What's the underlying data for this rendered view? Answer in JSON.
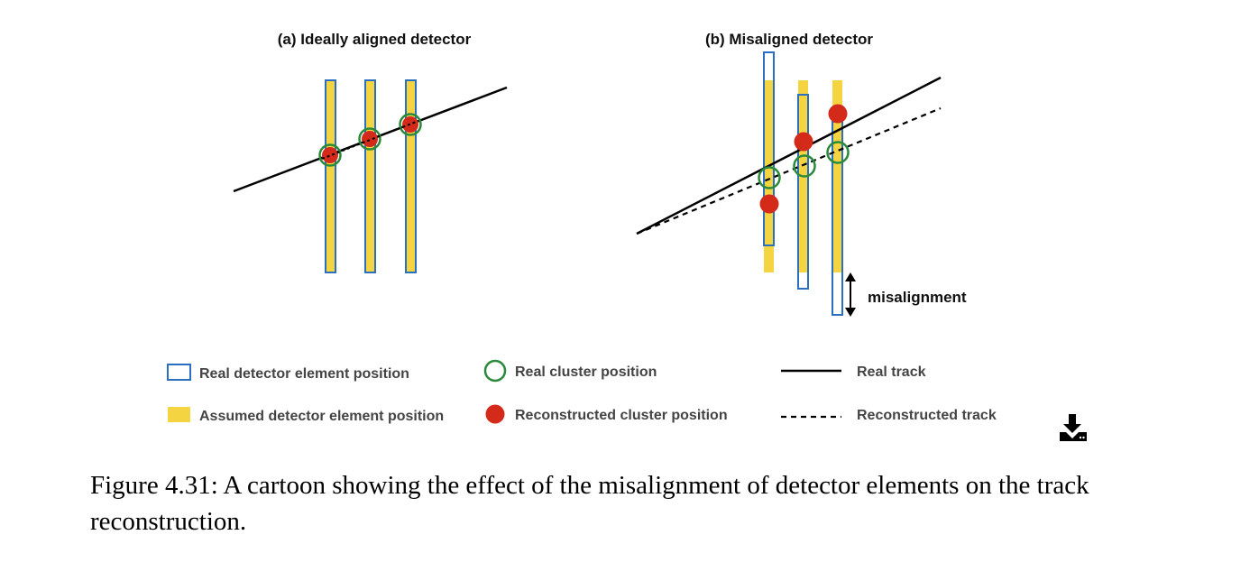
{
  "panels": {
    "a": {
      "title": "(a) Ideally aligned detector"
    },
    "b": {
      "title": "(b) Misaligned detector",
      "misalignment_label": "misalignment"
    }
  },
  "legend": {
    "real_element": "Real detector element position",
    "assumed_element": "Assumed detector element position",
    "real_cluster": "Real cluster position",
    "reco_cluster": "Reconstructed cluster position",
    "real_track": "Real track",
    "reco_track": "Reconstructed track"
  },
  "caption": "Figure 4.31: A cartoon showing the effect of the misalignment of detector elements on the track reconstruction.",
  "colors": {
    "real_element_outline": "#2a6fc0",
    "assumed_element_fill": "#f5d442",
    "real_cluster_outline": "#2a8a3a",
    "reco_cluster_fill": "#d42a1a",
    "track": "#000000"
  },
  "icons": {
    "download": "download-icon"
  }
}
